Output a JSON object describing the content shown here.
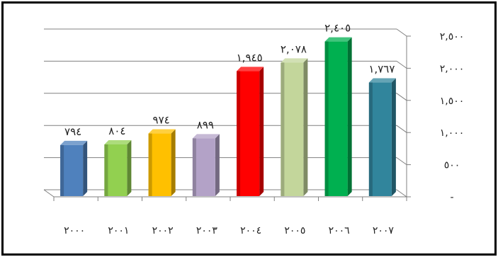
{
  "chart_data": {
    "type": "bar",
    "categories": [
      "٢٠٠٠",
      "٢٠٠١",
      "٢٠٠٢",
      "٢٠٠٣",
      "٢٠٠٤",
      "٢٠٠٥",
      "٢٠٠٦",
      "٢٠٠٧"
    ],
    "values": [
      794,
      804,
      974,
      899,
      1945,
      2078,
      2405,
      1767
    ],
    "data_labels": [
      "٧٩٤",
      "٨٠٤",
      "٩٧٤",
      "٨٩٩",
      "١,٩٤٥",
      "٢,٠٧٨",
      "٢,٤٠٥",
      "١,٧٦٧"
    ],
    "colors": [
      "#4f81bd",
      "#92d050",
      "#ffc000",
      "#b3a2c7",
      "#ff0000",
      "#c3d69b",
      "#00b050",
      "#31859c"
    ],
    "y_ticks": [
      0,
      500,
      1000,
      1500,
      2000,
      2500
    ],
    "y_tick_labels": [
      "-",
      "٥٠٠",
      "١,٠٠٠",
      "١,٥٠٠",
      "٢,٠٠٠",
      "٢,٥٠٠"
    ],
    "ylim": [
      0,
      2500
    ],
    "y_axis_side": "right",
    "grid": true,
    "style": "3d-column",
    "title": "",
    "xlabel": "",
    "ylabel": ""
  }
}
